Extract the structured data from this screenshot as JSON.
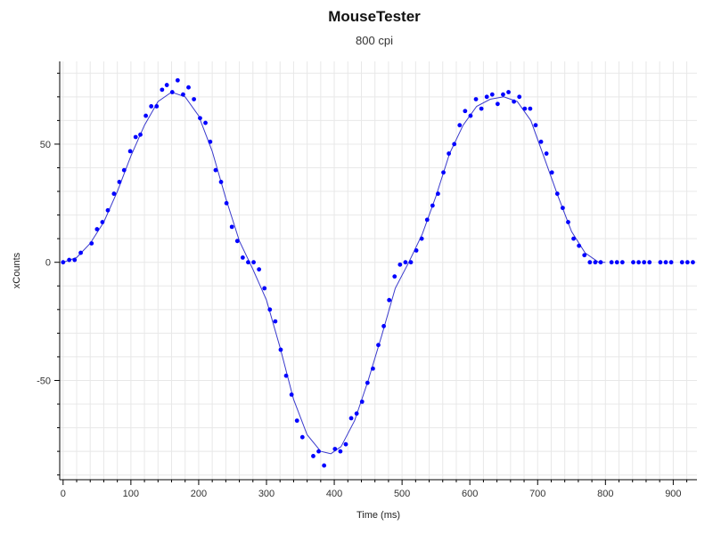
{
  "chart_data": {
    "type": "scatter",
    "title": "MouseTester",
    "subtitle": "800 cpi",
    "xlabel": "Time (ms)",
    "ylabel": "xCounts",
    "xlim": [
      -5,
      935
    ],
    "ylim": [
      -92,
      85
    ],
    "x_ticks": [
      0,
      100,
      200,
      300,
      400,
      500,
      600,
      700,
      800,
      900
    ],
    "y_ticks": [
      -50,
      0,
      50
    ],
    "grid": true,
    "colors": {
      "points": "#0000ff",
      "fit_line": "#3a3acc",
      "grid": "#e8e8e8",
      "axis": "#000000"
    },
    "series": [
      {
        "values_xy": [
          [
            0,
            0
          ],
          [
            9,
            1
          ],
          [
            17,
            1
          ],
          [
            26,
            4
          ],
          [
            42,
            8
          ],
          [
            50,
            14
          ],
          [
            58,
            17
          ],
          [
            66,
            22
          ],
          [
            75,
            29
          ],
          [
            83,
            34
          ],
          [
            90,
            39
          ],
          [
            99,
            47
          ],
          [
            107,
            53
          ],
          [
            114,
            54
          ],
          [
            122,
            62
          ],
          [
            130,
            66
          ],
          [
            138,
            66
          ],
          [
            146,
            73
          ],
          [
            153,
            75
          ],
          [
            161,
            72
          ],
          [
            169,
            77
          ],
          [
            177,
            71
          ],
          [
            185,
            74
          ],
          [
            193,
            69
          ],
          [
            202,
            61
          ],
          [
            210,
            59
          ],
          [
            217,
            51
          ],
          [
            225,
            39
          ],
          [
            233,
            34
          ],
          [
            241,
            25
          ],
          [
            249,
            15
          ],
          [
            257,
            9
          ],
          [
            265,
            2
          ],
          [
            273,
            0
          ],
          [
            281,
            0
          ],
          [
            289,
            -3
          ],
          [
            297,
            -11
          ],
          [
            305,
            -20
          ],
          [
            313,
            -25
          ],
          [
            321,
            -37
          ],
          [
            329,
            -48
          ],
          [
            337,
            -56
          ],
          [
            345,
            -67
          ],
          [
            353,
            -74
          ],
          [
            369,
            -82
          ],
          [
            377,
            -80
          ],
          [
            385,
            -86
          ],
          [
            401,
            -79
          ],
          [
            409,
            -80
          ],
          [
            417,
            -77
          ],
          [
            425,
            -66
          ],
          [
            433,
            -64
          ],
          [
            441,
            -59
          ],
          [
            449,
            -51
          ],
          [
            457,
            -45
          ],
          [
            465,
            -35
          ],
          [
            473,
            -27
          ],
          [
            481,
            -16
          ],
          [
            489,
            -6
          ],
          [
            497,
            -1
          ],
          [
            505,
            0
          ],
          [
            513,
            0
          ],
          [
            521,
            5
          ],
          [
            529,
            10
          ],
          [
            537,
            18
          ],
          [
            545,
            24
          ],
          [
            553,
            29
          ],
          [
            561,
            38
          ],
          [
            569,
            46
          ],
          [
            577,
            50
          ],
          [
            585,
            58
          ],
          [
            593,
            64
          ],
          [
            601,
            62
          ],
          [
            609,
            69
          ],
          [
            617,
            65
          ],
          [
            625,
            70
          ],
          [
            633,
            71
          ],
          [
            641,
            67
          ],
          [
            649,
            71
          ],
          [
            657,
            72
          ],
          [
            665,
            68
          ],
          [
            673,
            70
          ],
          [
            681,
            65
          ],
          [
            689,
            65
          ],
          [
            697,
            58
          ],
          [
            705,
            51
          ],
          [
            713,
            46
          ],
          [
            721,
            38
          ],
          [
            729,
            29
          ],
          [
            737,
            23
          ],
          [
            745,
            17
          ],
          [
            753,
            10
          ],
          [
            761,
            7
          ],
          [
            769,
            3
          ],
          [
            777,
            0
          ],
          [
            785,
            0
          ],
          [
            793,
            0
          ],
          [
            809,
            0
          ],
          [
            817,
            0
          ],
          [
            825,
            0
          ],
          [
            841,
            0
          ],
          [
            849,
            0
          ],
          [
            857,
            0
          ],
          [
            865,
            0
          ],
          [
            881,
            0
          ],
          [
            889,
            0
          ],
          [
            897,
            0
          ],
          [
            913,
            0
          ],
          [
            921,
            0
          ],
          [
            929,
            0
          ]
        ]
      }
    ],
    "fit_line": [
      [
        0,
        0
      ],
      [
        20,
        2
      ],
      [
        40,
        8
      ],
      [
        60,
        17
      ],
      [
        80,
        30
      ],
      [
        100,
        45
      ],
      [
        120,
        58
      ],
      [
        140,
        68
      ],
      [
        160,
        72
      ],
      [
        180,
        70
      ],
      [
        200,
        62
      ],
      [
        220,
        47
      ],
      [
        240,
        27
      ],
      [
        260,
        9
      ],
      [
        280,
        -3
      ],
      [
        300,
        -16
      ],
      [
        320,
        -36
      ],
      [
        340,
        -58
      ],
      [
        360,
        -73
      ],
      [
        380,
        -80
      ],
      [
        395,
        -81
      ],
      [
        410,
        -78
      ],
      [
        430,
        -67
      ],
      [
        450,
        -50
      ],
      [
        470,
        -31
      ],
      [
        490,
        -11
      ],
      [
        510,
        0
      ],
      [
        530,
        12
      ],
      [
        550,
        28
      ],
      [
        570,
        46
      ],
      [
        590,
        58
      ],
      [
        610,
        66
      ],
      [
        630,
        69
      ],
      [
        650,
        70
      ],
      [
        670,
        68
      ],
      [
        690,
        60
      ],
      [
        710,
        44
      ],
      [
        730,
        28
      ],
      [
        750,
        13
      ],
      [
        770,
        4
      ],
      [
        790,
        0
      ],
      [
        800,
        0
      ]
    ]
  }
}
